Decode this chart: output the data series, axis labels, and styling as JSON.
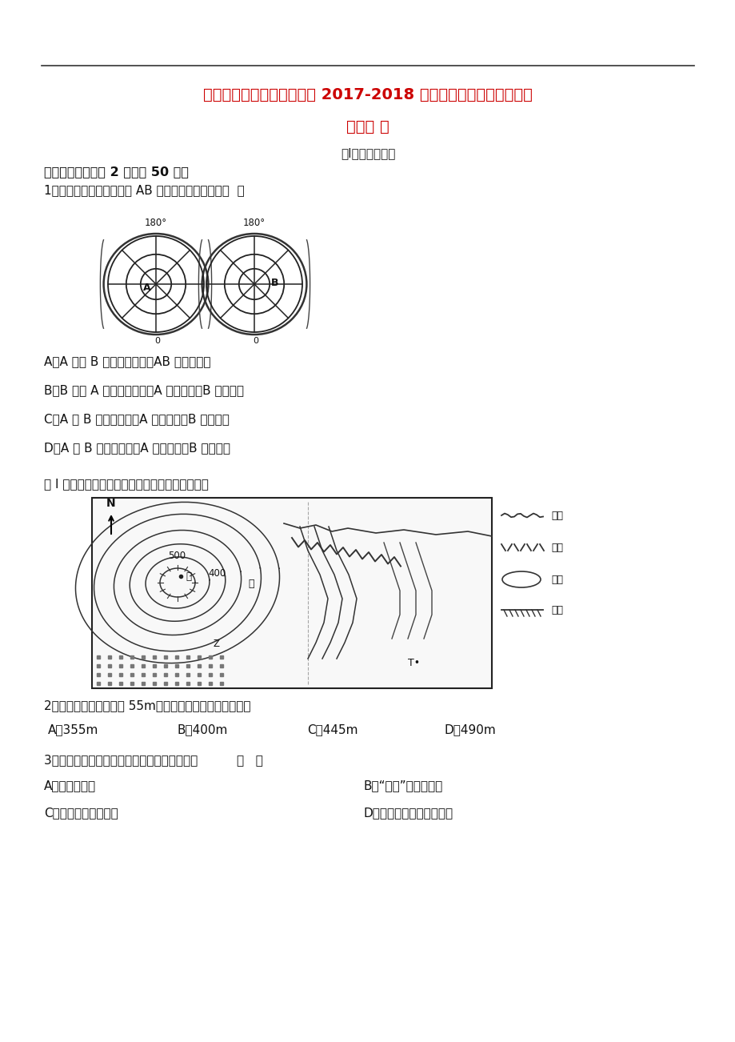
{
  "bg_color": "#ffffff",
  "title_line1": "云南省昆明市黄冈实验学校 2017-2018 学年高二地理上学期期末考",
  "title_line2": "试试题 文",
  "title_color": "#cc0000",
  "section_header": "第I卷（选择题）",
  "section1": "一、选择题（每题 2 分，共 50 分）",
  "q1": "1、判读如图两幅图；有关 AB 两点的说法正确的是（  ）",
  "q1_a": "A．A 点在 B 点的西北方向，AB 都在西半球",
  "q1_b": "B．B 点在 A 点的东南方向，A 在南半球，B 在北半球",
  "q1_c": "C．A 在 B 的西北方向，A 在西半球，B 在东半球",
  "q1_d": "D．A 在 B 的西南方向，A 在北半球，B 在南半球",
  "fig1_caption": "图 I 为某景区等高线地形图，读图完成下列各题。",
  "q2": "2、若图中急流段高差为 55m，则图中甲与丙地高差可能为",
  "q2_a": "A．355m",
  "q2_b": "B．400m",
  "q2_c": "C．445m",
  "q2_d": "D．490m",
  "q3": "3、下列地理现象中，与太阳活动密切相关的是          （   ）",
  "q3_a": "A．酸雨的形成",
  "q3_b": "B．“磁暴”现象的产生",
  "q3_c": "C．臭氧层空洞的出现",
  "q3_d": "D．扬尘、沙暴天气的出现"
}
